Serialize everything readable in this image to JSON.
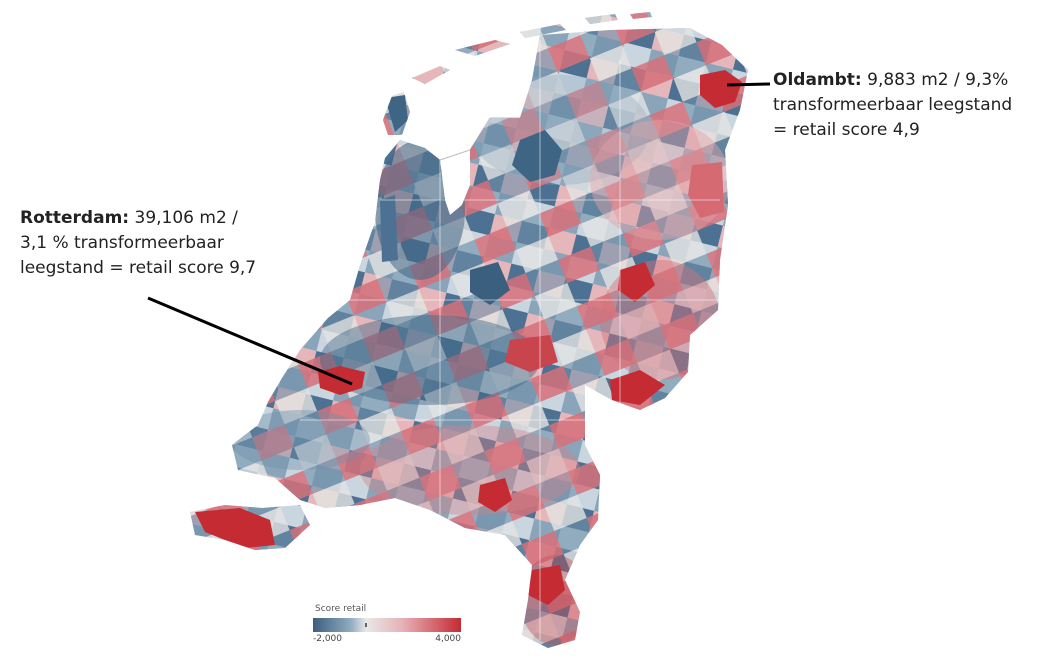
{
  "annotations": {
    "oldambt": {
      "name": "Oldambt:",
      "line1": "9,883 m2 / 9,3%",
      "line2": "transformeerbaar leegstand",
      "line3": "= retail score 4,9"
    },
    "rotterdam": {
      "name": "Rotterdam:",
      "line1": "39,106 m2 /",
      "line2": "3,1 % transformeerbaar",
      "line3": "leegstand = retail score 9,7"
    }
  },
  "legend": {
    "title": "Score retail",
    "min": "-2,000",
    "max": "4,000"
  },
  "colors": {
    "negative": "#3b5f7f",
    "neutral": "#e8e8e8",
    "positive": "#c42b33"
  }
}
